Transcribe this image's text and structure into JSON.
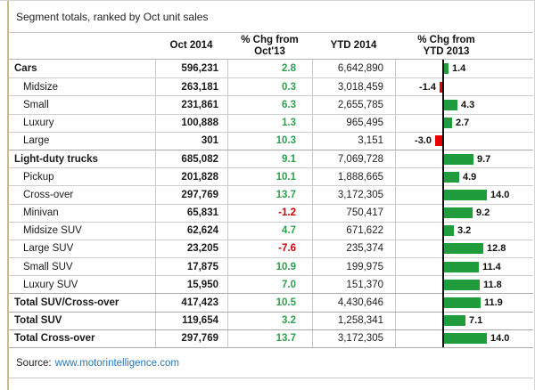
{
  "title": "Segment totals, ranked by Oct unit sales",
  "source": {
    "label": "Source:",
    "link_text": "www.motorintelligence.com"
  },
  "header": {
    "segment": "",
    "oct": "Oct 2014",
    "chg_oct": "% Chg from\nOct'13",
    "ytd": "YTD 2014",
    "chg_ytd": "% Chg from\nYTD 2013"
  },
  "colors": {
    "positive_bar": "#219c3d",
    "negative_bar": "#e60000",
    "positive_text": "#2f9e4e",
    "negative_text": "#cc0000",
    "link": "#2b77b8",
    "left_border": "#c9bc85",
    "axis": "#111111"
  },
  "table": {
    "rows": [
      {
        "label": "Cars",
        "indent": false,
        "section": true,
        "oct": "596,231",
        "chg_oct": "2.8",
        "ytd": "6,642,890",
        "chg_ytd": 1.4,
        "chg_ytd_label": "1.4"
      },
      {
        "label": "Midsize",
        "indent": true,
        "section": false,
        "oct": "263,181",
        "chg_oct": "0.3",
        "ytd": "3,018,459",
        "chg_ytd": -1.4,
        "chg_ytd_label": "-1.4"
      },
      {
        "label": "Small",
        "indent": true,
        "section": false,
        "oct": "231,861",
        "chg_oct": "6.3",
        "ytd": "2,655,785",
        "chg_ytd": 4.3,
        "chg_ytd_label": "4.3"
      },
      {
        "label": "Luxury",
        "indent": true,
        "section": false,
        "oct": "100,888",
        "chg_oct": "1.3",
        "ytd": "965,495",
        "chg_ytd": 2.7,
        "chg_ytd_label": "2.7"
      },
      {
        "label": "Large",
        "indent": true,
        "section": false,
        "oct": "301",
        "chg_oct": "10.3",
        "ytd": "3,151",
        "chg_ytd": -3.0,
        "chg_ytd_label": "-3.0"
      },
      {
        "label": "Light-duty trucks",
        "indent": false,
        "section": true,
        "oct": "685,082",
        "chg_oct": "9.1",
        "ytd": "7,069,728",
        "chg_ytd": 9.7,
        "chg_ytd_label": "9.7"
      },
      {
        "label": "Pickup",
        "indent": true,
        "section": false,
        "oct": "201,828",
        "chg_oct": "10.1",
        "ytd": "1,888,665",
        "chg_ytd": 4.9,
        "chg_ytd_label": "4.9"
      },
      {
        "label": "Cross-over",
        "indent": true,
        "section": false,
        "oct": "297,769",
        "chg_oct": "13.7",
        "ytd": "3,172,305",
        "chg_ytd": 14.0,
        "chg_ytd_label": "14.0"
      },
      {
        "label": "Minivan",
        "indent": true,
        "section": false,
        "oct": "65,831",
        "chg_oct": "-1.2",
        "ytd": "750,417",
        "chg_ytd": 9.2,
        "chg_ytd_label": "9.2"
      },
      {
        "label": "Midsize SUV",
        "indent": true,
        "section": false,
        "oct": "62,624",
        "chg_oct": "4.7",
        "ytd": "671,622",
        "chg_ytd": 3.2,
        "chg_ytd_label": "3.2"
      },
      {
        "label": "Large SUV",
        "indent": true,
        "section": false,
        "oct": "23,205",
        "chg_oct": "-7.6",
        "ytd": "235,374",
        "chg_ytd": 12.8,
        "chg_ytd_label": "12.8"
      },
      {
        "label": "Small SUV",
        "indent": true,
        "section": false,
        "oct": "17,875",
        "chg_oct": "10.9",
        "ytd": "199,975",
        "chg_ytd": 11.4,
        "chg_ytd_label": "11.4"
      },
      {
        "label": "Luxury SUV",
        "indent": true,
        "section": false,
        "oct": "15,950",
        "chg_oct": "7.0",
        "ytd": "151,370",
        "chg_ytd": 11.8,
        "chg_ytd_label": "11.8"
      },
      {
        "label": "Total SUV/Cross-over",
        "indent": false,
        "section": true,
        "oct": "417,423",
        "chg_oct": "10.5",
        "ytd": "4,430,646",
        "chg_ytd": 11.9,
        "chg_ytd_label": "11.9"
      },
      {
        "label": "Total SUV",
        "indent": false,
        "section": true,
        "oct": "119,654",
        "chg_oct": "3.2",
        "ytd": "1,258,341",
        "chg_ytd": 7.1,
        "chg_ytd_label": "7.1"
      },
      {
        "label": "Total Cross-over",
        "indent": false,
        "section": true,
        "oct": "297,769",
        "chg_oct": "13.7",
        "ytd": "3,172,305",
        "chg_ytd": 14.0,
        "chg_ytd_label": "14.0"
      }
    ]
  },
  "chart_data": {
    "type": "bar",
    "orientation": "horizontal",
    "title": "% Chg from YTD 2013",
    "categories": [
      "Cars",
      "Midsize",
      "Small",
      "Luxury",
      "Large",
      "Light-duty trucks",
      "Pickup",
      "Cross-over",
      "Minivan",
      "Midsize SUV",
      "Large SUV",
      "Small SUV",
      "Luxury SUV",
      "Total SUV/Cross-over",
      "Total SUV",
      "Total Cross-over"
    ],
    "values": [
      1.4,
      -1.4,
      4.3,
      2.7,
      -3.0,
      9.7,
      4.9,
      14.0,
      9.2,
      3.2,
      12.8,
      11.4,
      11.8,
      11.9,
      7.1,
      14.0
    ],
    "xlim": [
      -15.7,
      29.2
    ],
    "grid": false,
    "legend": false,
    "data_labels": true
  }
}
